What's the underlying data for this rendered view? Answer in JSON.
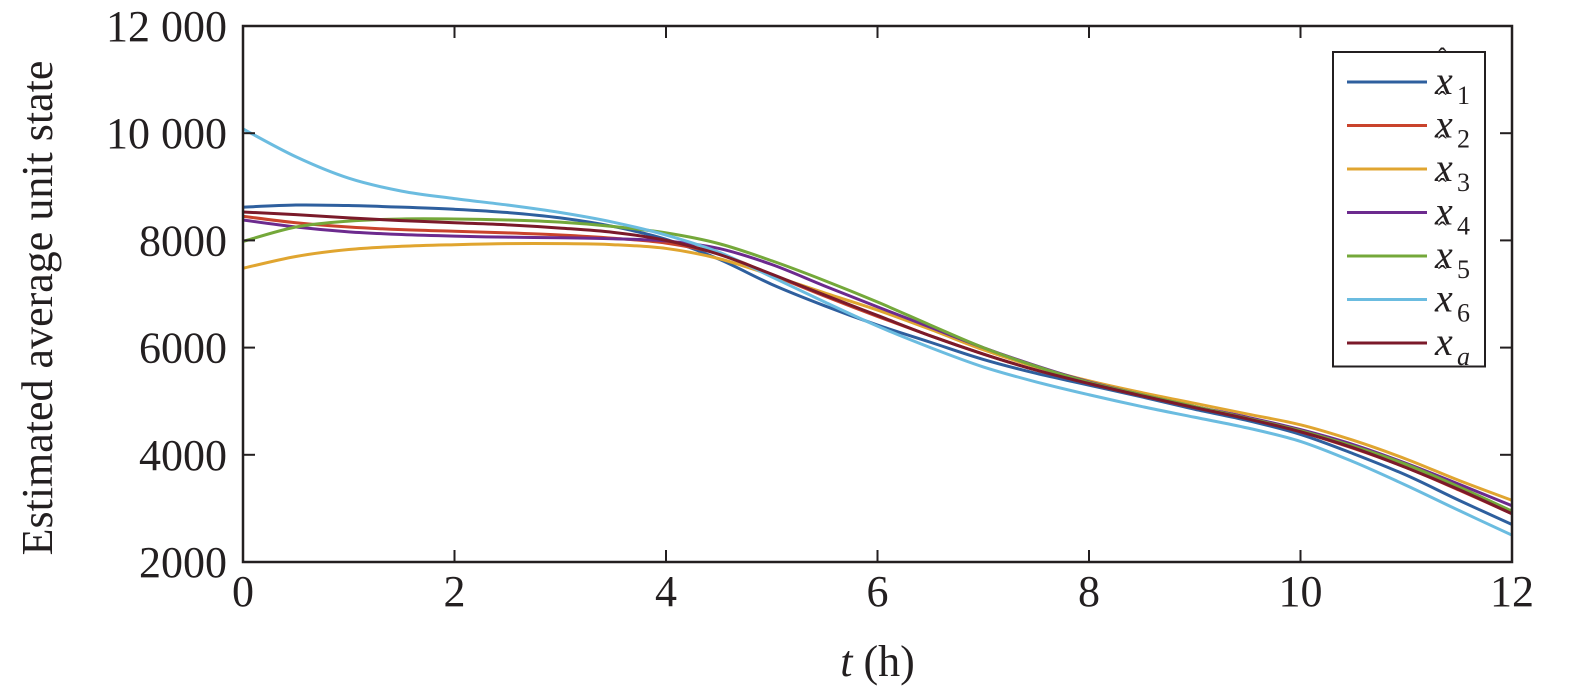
{
  "chart_data": {
    "type": "line",
    "xlabel": {
      "var": "t",
      "unit": " (h)"
    },
    "ylabel": "Estimated average unit state",
    "xlim": [
      0,
      12
    ],
    "ylim": [
      2000,
      12000
    ],
    "xticks": [
      0,
      2,
      4,
      6,
      8,
      10,
      12
    ],
    "xtick_labels": [
      "0",
      "2",
      "4",
      "6",
      "8",
      "10",
      "12"
    ],
    "yticks": [
      2000,
      4000,
      6000,
      8000,
      10000,
      12000
    ],
    "ytick_labels": [
      "2000",
      "4000",
      "6000",
      "8000",
      "10 000",
      "12 000"
    ],
    "grid": false,
    "legend_position": "top-right",
    "series": [
      {
        "name": "x̂1",
        "label_main": "x",
        "hat": true,
        "sub": "1",
        "color": "#2e5f9e",
        "x": [
          0,
          0.5,
          1,
          1.5,
          2,
          2.5,
          3,
          3.5,
          4,
          4.5,
          5,
          5.5,
          6,
          6.5,
          7,
          7.5,
          8,
          8.5,
          9,
          9.5,
          10,
          10.5,
          11,
          11.5,
          12
        ],
        "y": [
          8620,
          8660,
          8650,
          8620,
          8580,
          8520,
          8420,
          8260,
          8020,
          7650,
          7180,
          6780,
          6420,
          6100,
          5780,
          5520,
          5300,
          5080,
          4850,
          4640,
          4380,
          4020,
          3620,
          3150,
          2700
        ]
      },
      {
        "name": "x̂2",
        "label_main": "x",
        "hat": true,
        "sub": "2",
        "color": "#c9432c",
        "x": [
          0,
          0.5,
          1,
          1.5,
          2,
          2.5,
          3,
          3.5,
          4,
          4.5,
          5,
          5.5,
          6,
          6.5,
          7,
          7.5,
          8,
          8.5,
          9,
          9.5,
          10,
          10.5,
          11,
          11.5,
          12
        ],
        "y": [
          8450,
          8330,
          8250,
          8200,
          8170,
          8140,
          8100,
          8040,
          7950,
          7750,
          7360,
          6960,
          6580,
          6220,
          5880,
          5580,
          5330,
          5100,
          4880,
          4680,
          4430,
          4120,
          3760,
          3340,
          2900
        ]
      },
      {
        "name": "x̂3",
        "label_main": "x",
        "hat": true,
        "sub": "3",
        "color": "#e0a530",
        "x": [
          0,
          0.5,
          1,
          1.5,
          2,
          2.5,
          3,
          3.5,
          4,
          4.5,
          5,
          5.5,
          6,
          6.5,
          7,
          7.5,
          8,
          8.5,
          9,
          9.5,
          10,
          10.5,
          11,
          11.5,
          12
        ],
        "y": [
          7480,
          7700,
          7830,
          7890,
          7920,
          7940,
          7940,
          7920,
          7850,
          7660,
          7350,
          7020,
          6700,
          6340,
          5960,
          5640,
          5380,
          5160,
          4960,
          4760,
          4560,
          4270,
          3920,
          3520,
          3150
        ]
      },
      {
        "name": "x̂4",
        "label_main": "x",
        "hat": true,
        "sub": "4",
        "color": "#6c2a8e",
        "x": [
          0,
          0.5,
          1,
          1.5,
          2,
          2.5,
          3,
          3.5,
          4,
          4.5,
          5,
          5.5,
          6,
          6.5,
          7,
          7.5,
          8,
          8.5,
          9,
          9.5,
          10,
          10.5,
          11,
          11.5,
          12
        ],
        "y": [
          8380,
          8250,
          8160,
          8110,
          8080,
          8060,
          8050,
          8030,
          7990,
          7850,
          7550,
          7150,
          6760,
          6380,
          6000,
          5660,
          5360,
          5120,
          4900,
          4700,
          4470,
          4190,
          3840,
          3450,
          3050
        ]
      },
      {
        "name": "x̂5",
        "label_main": "x",
        "hat": true,
        "sub": "5",
        "color": "#74a83a",
        "x": [
          0,
          0.5,
          1,
          1.5,
          2,
          2.5,
          3,
          3.5,
          4,
          4.5,
          5,
          5.5,
          6,
          6.5,
          7,
          7.5,
          8,
          8.5,
          9,
          9.5,
          10,
          10.5,
          11,
          11.5,
          12
        ],
        "y": [
          7980,
          8250,
          8360,
          8400,
          8400,
          8380,
          8340,
          8260,
          8140,
          7940,
          7620,
          7250,
          6850,
          6420,
          6000,
          5650,
          5350,
          5120,
          4900,
          4680,
          4450,
          4160,
          3820,
          3400,
          2950
        ]
      },
      {
        "name": "x̂6",
        "label_main": "x",
        "hat": true,
        "sub": "6",
        "color": "#6bbce0",
        "x": [
          0,
          0.5,
          1,
          1.5,
          2,
          2.5,
          3,
          3.5,
          4,
          4.5,
          5,
          5.5,
          6,
          6.5,
          7,
          7.5,
          8,
          8.5,
          9,
          9.5,
          10,
          10.5,
          11,
          11.5,
          12
        ],
        "y": [
          10080,
          9560,
          9160,
          8920,
          8780,
          8660,
          8520,
          8340,
          8100,
          7780,
          7320,
          6850,
          6400,
          6000,
          5640,
          5360,
          5120,
          4900,
          4700,
          4500,
          4250,
          3870,
          3430,
          2960,
          2500
        ]
      },
      {
        "name": "xa",
        "label_main": "x",
        "hat": false,
        "sub": "a",
        "color": "#7b1a2a",
        "x": [
          0,
          0.5,
          1,
          1.5,
          2,
          2.5,
          3,
          3.5,
          4,
          4.5,
          5,
          5.5,
          6,
          6.5,
          7,
          7.5,
          8,
          8.5,
          9,
          9.5,
          10,
          10.5,
          11,
          11.5,
          12
        ],
        "y": [
          8530,
          8480,
          8420,
          8370,
          8330,
          8290,
          8230,
          8150,
          8000,
          7740,
          7370,
          6980,
          6600,
          6220,
          5880,
          5580,
          5330,
          5100,
          4880,
          4670,
          4430,
          4130,
          3760,
          3350,
          2900
        ]
      }
    ]
  }
}
